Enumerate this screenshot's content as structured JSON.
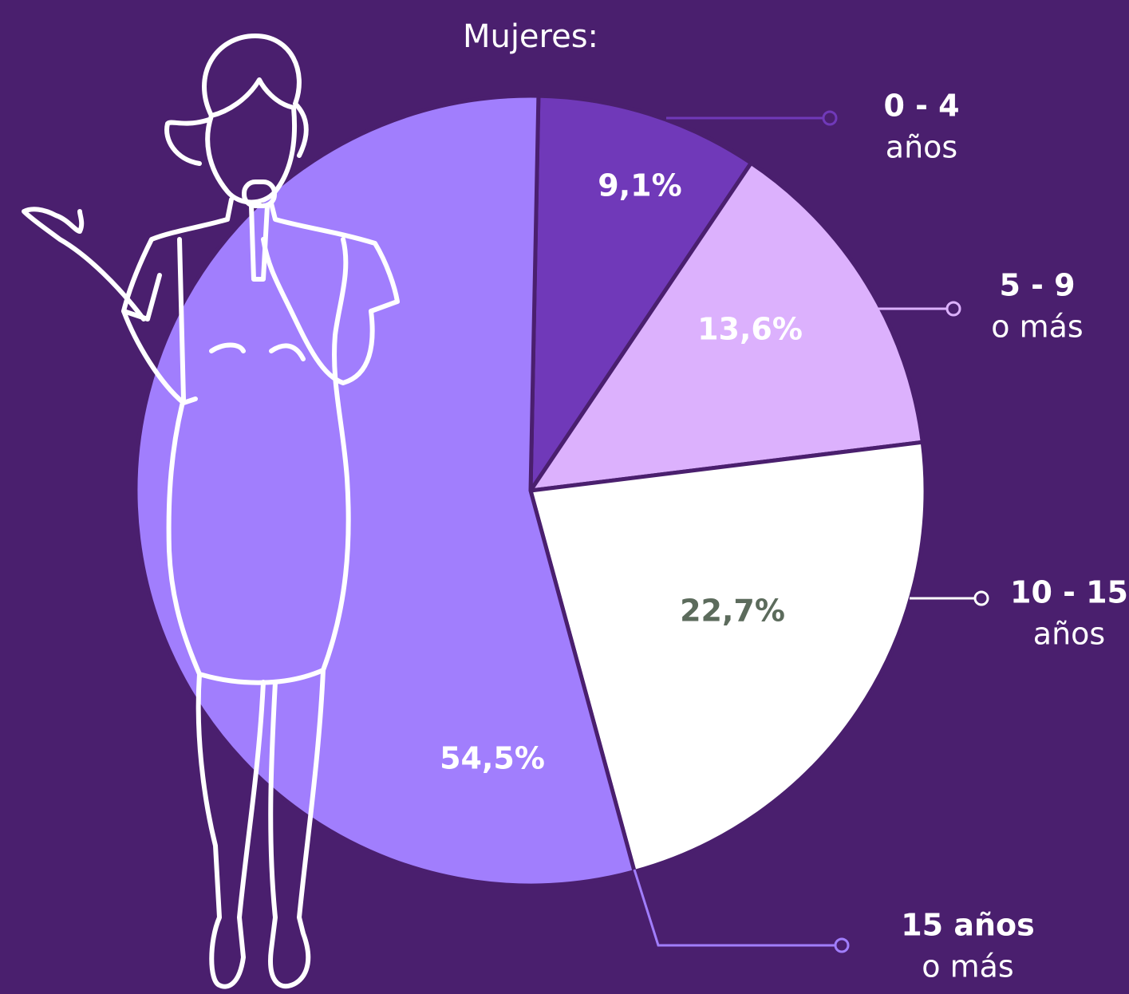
{
  "chart_data": {
    "type": "pie",
    "title": "Mujeres:",
    "categories": [
      "0 - 4",
      "5 - 9",
      "10 - 15",
      "15 años"
    ],
    "category_sublabels": [
      "años",
      "o más",
      "años",
      "o más"
    ],
    "values": [
      9.1,
      13.6,
      22.7,
      54.5
    ],
    "value_labels": [
      "9,1%",
      "13,6%",
      "22,7%",
      "54,5%"
    ],
    "colors": [
      "#7039b9",
      "#dcb1fd",
      "#ffffff",
      "#a17efd"
    ],
    "label_colors": [
      "#ffffff",
      "#ffffff",
      "#5c6b5c",
      "#ffffff"
    ],
    "background": "#4a1f6e"
  }
}
